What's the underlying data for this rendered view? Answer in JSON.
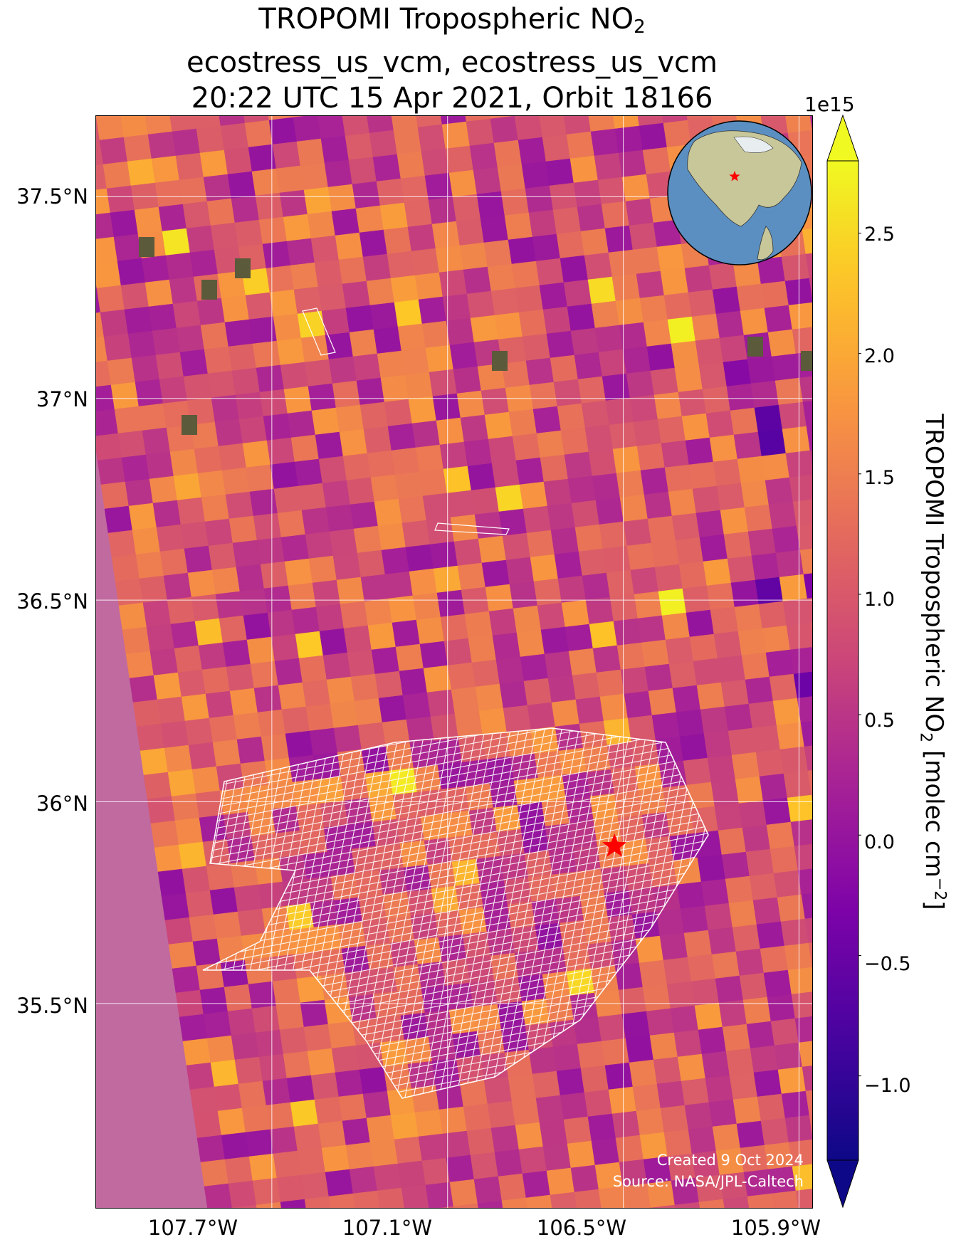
{
  "title": {
    "line1_main": "TROPOMI Tropospheric NO",
    "line1_sub": "2",
    "line2": "ecostress_us_vcm, ecostress_us_vcm",
    "line3": "20:22 UTC 15 Apr 2021, Orbit 18166"
  },
  "map": {
    "lat_ticks": [
      "37.5°N",
      "37°N",
      "36.5°N",
      "36°N",
      "35.5°N"
    ],
    "lon_ticks": [
      "107.7°W",
      "107.1°W",
      "106.5°W",
      "105.9°W"
    ],
    "lat_tick_values": [
      37.5,
      37.0,
      36.5,
      36.0,
      35.5
    ],
    "lon_tick_values": [
      -107.7,
      -107.1,
      -106.5,
      -105.9
    ],
    "lat_range": [
      34.99,
      37.7
    ],
    "lon_range": [
      -108.3,
      -105.85
    ],
    "gridlines": true,
    "marker": {
      "type": "red-star",
      "lat": 35.89,
      "lon": -106.53
    },
    "credit_line1": "Created 9 Oct 2024",
    "credit_line2": "Source: NASA/JPL-Caltech"
  },
  "colorbar": {
    "multiplier": "1e15",
    "label_main": "TROPOMI Tropospheric NO",
    "label_sub": "2",
    "label_units": " [molec cm",
    "label_sup": "−2",
    "label_end": "]",
    "colormap": "plasma",
    "vmin": -1.35,
    "vmax": 2.8,
    "extend": "both",
    "ticks": [
      "2.5",
      "2.0",
      "1.5",
      "1.0",
      "0.5",
      "0.0",
      "−0.5",
      "−1.0"
    ],
    "tick_values": [
      2.5,
      2.0,
      1.5,
      1.0,
      0.5,
      0.0,
      -0.5,
      -1.0
    ]
  },
  "inset_globe": {
    "region": "North America",
    "marker": "red-star"
  },
  "colors": {
    "marker": "#ff0000",
    "grid": "#ffffff",
    "ocean": "#5b8fc1",
    "land": "#c8c79a"
  }
}
